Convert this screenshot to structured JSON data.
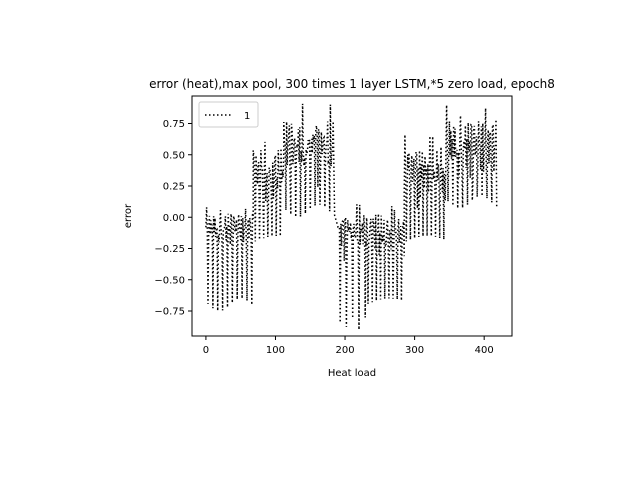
{
  "chart_data": {
    "type": "line",
    "title": "error (heat),max pool, 300 times 1 layer LSTM,*5 zero load, epoch8",
    "xlabel": "Heat load",
    "ylabel": "error",
    "xlim": [
      -20,
      440
    ],
    "ylim": [
      -0.95,
      0.97
    ],
    "xticks": [
      0,
      100,
      200,
      300,
      400
    ],
    "xtick_labels": [
      "0",
      "100",
      "200",
      "300",
      "400"
    ],
    "yticks": [
      -0.75,
      -0.5,
      -0.25,
      0.0,
      0.25,
      0.5,
      0.75
    ],
    "ytick_labels": [
      "−0.75",
      "−0.50",
      "−0.25",
      "0.00",
      "0.25",
      "0.50",
      "0.75"
    ],
    "grid": false,
    "legend": {
      "position": "top-left",
      "entries": [
        "1"
      ]
    },
    "series": [
      {
        "name": "1",
        "color": "#000000",
        "linestyle": "dotted",
        "segments": [
          {
            "x0": 0,
            "x1": 68,
            "base": -0.08,
            "amp": 0.12,
            "spike": -0.7,
            "spike_every": 7
          },
          {
            "x0": 68,
            "x1": 112,
            "base": 0.35,
            "amp": 0.22,
            "spike": -0.2,
            "spike_every": 6
          },
          {
            "x0": 112,
            "x1": 185,
            "base": 0.58,
            "amp": 0.2,
            "spike": 0.05,
            "spike_every": 7
          },
          {
            "x0": 190,
            "x1": 230,
            "base": -0.1,
            "amp": 0.14,
            "spike": -0.85,
            "spike_every": 9
          },
          {
            "x0": 230,
            "x1": 285,
            "base": -0.12,
            "amp": 0.15,
            "spike": -0.7,
            "spike_every": 6
          },
          {
            "x0": 285,
            "x1": 345,
            "base": 0.38,
            "amp": 0.2,
            "spike": -0.2,
            "spike_every": 6
          },
          {
            "x0": 345,
            "x1": 418,
            "base": 0.58,
            "amp": 0.22,
            "spike": 0.12,
            "spike_every": 7
          }
        ]
      }
    ]
  }
}
